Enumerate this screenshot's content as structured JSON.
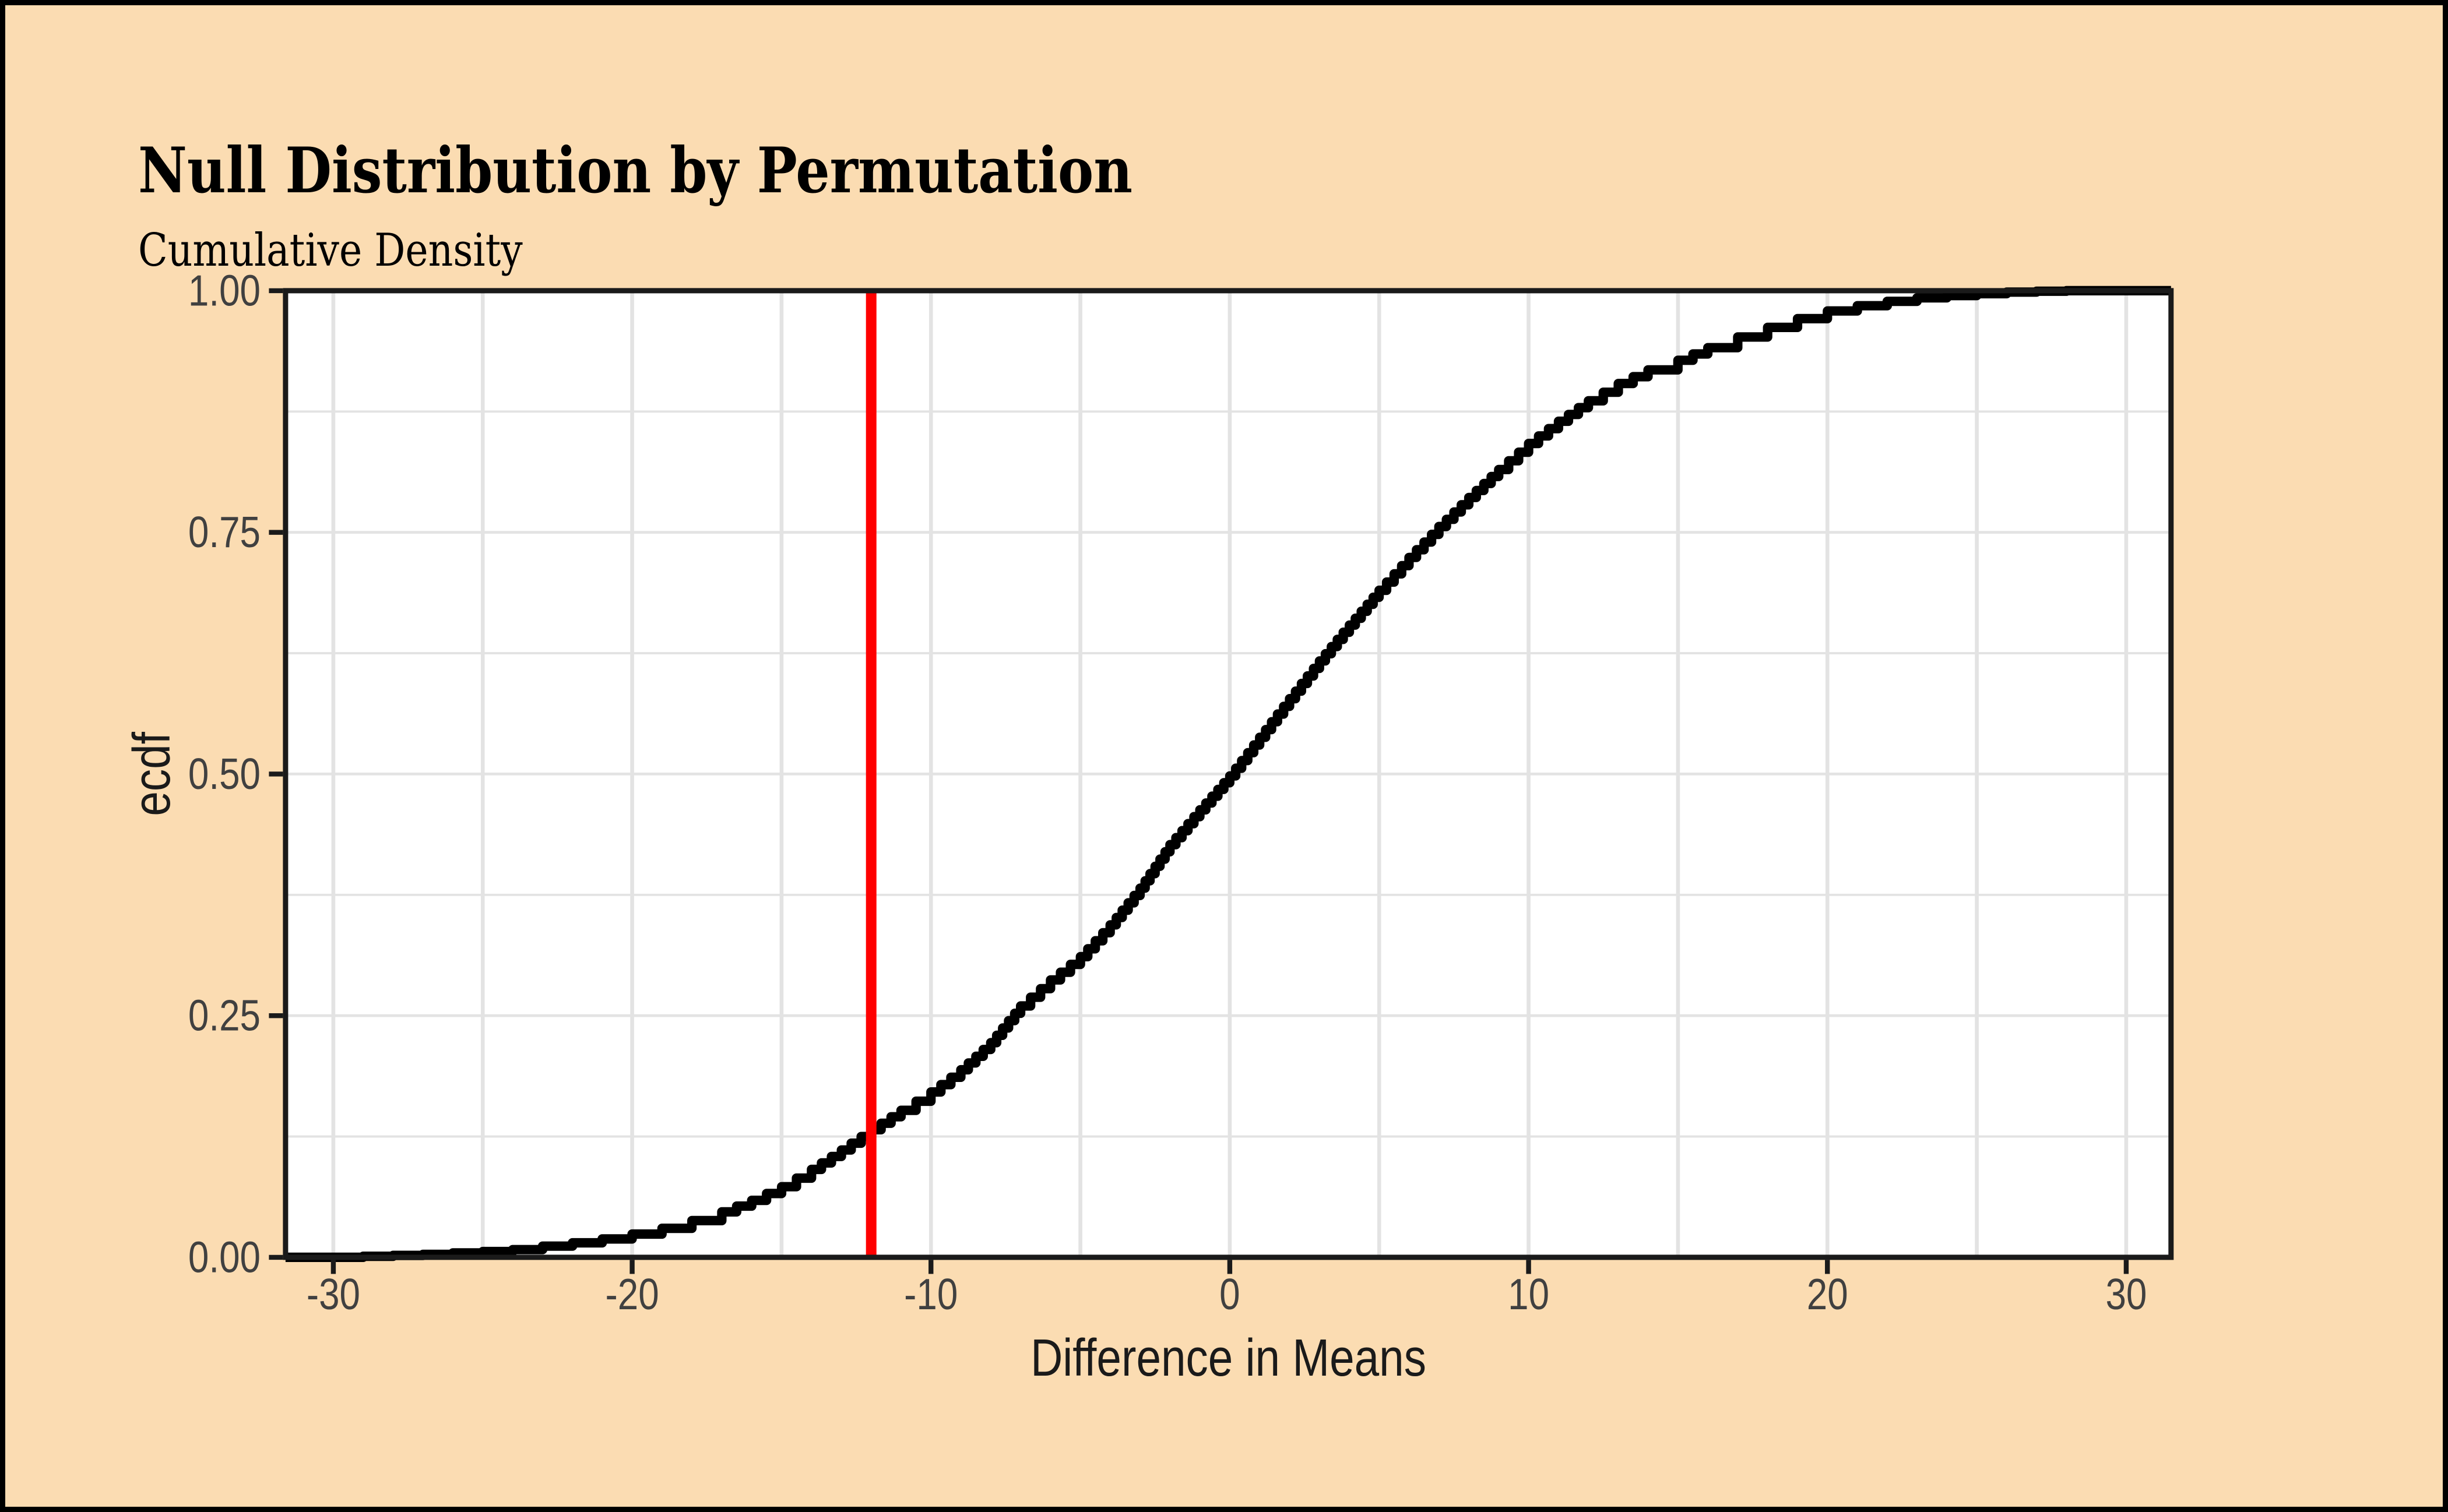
{
  "chart_data": {
    "type": "line",
    "subtype": "ecdf-step",
    "title": "Null Distribution by Permutation",
    "subtitle": "Cumulative Density",
    "xlabel": "Difference in Means",
    "ylabel": "ecdf",
    "x_domain": [
      -31.6,
      31.5
    ],
    "y_domain": [
      0,
      1
    ],
    "x_ticks": {
      "values": [
        -30,
        -20,
        -10,
        0,
        10,
        20,
        30
      ],
      "labels": [
        "-30",
        "-20",
        "-10",
        "0",
        "10",
        "20",
        "30"
      ]
    },
    "y_ticks": {
      "values": [
        0,
        0.25,
        0.5,
        0.75,
        1
      ],
      "labels": [
        "0.00",
        "0.25",
        "0.50",
        "0.75",
        "1.00"
      ]
    },
    "x_minor_ticks": [
      -25,
      -15,
      -5,
      5,
      15,
      25
    ],
    "y_minor_ticks": [
      0.125,
      0.375,
      0.625,
      0.875
    ],
    "grid": "on",
    "legend": "none",
    "reference_line": {
      "orientation": "vertical",
      "x": -12,
      "color": "#FF0000"
    },
    "series": [
      {
        "name": "ecdf",
        "color": "#000000",
        "points": [
          [
            -31.6,
            0
          ],
          [
            -29.6,
            0
          ],
          [
            -29,
            0.001
          ],
          [
            -28,
            0.002
          ],
          [
            -27,
            0.003
          ],
          [
            -26,
            0.0045
          ],
          [
            -25,
            0.006
          ],
          [
            -24,
            0.008
          ],
          [
            -23,
            0.0115
          ],
          [
            -22,
            0.015
          ],
          [
            -21,
            0.019
          ],
          [
            -20,
            0.024
          ],
          [
            -19,
            0.03
          ],
          [
            -18,
            0.038
          ],
          [
            -17,
            0.047
          ],
          [
            -16,
            0.059
          ],
          [
            -15,
            0.073
          ],
          [
            -14,
            0.091
          ],
          [
            -13,
            0.111
          ],
          [
            -12,
            0.132
          ],
          [
            -11,
            0.152
          ],
          [
            -10,
            0.171
          ],
          [
            -9,
            0.194
          ],
          [
            -8,
            0.222
          ],
          [
            -7,
            0.26
          ],
          [
            -6,
            0.287
          ],
          [
            -5,
            0.311
          ],
          [
            -4,
            0.344
          ],
          [
            -3,
            0.382
          ],
          [
            -2,
            0.427
          ],
          [
            -1,
            0.463
          ],
          [
            0,
            0.498
          ],
          [
            1,
            0.538
          ],
          [
            2,
            0.578
          ],
          [
            3,
            0.617
          ],
          [
            4,
            0.654
          ],
          [
            5,
            0.69
          ],
          [
            6,
            0.724
          ],
          [
            7,
            0.756
          ],
          [
            8,
            0.786
          ],
          [
            9,
            0.815
          ],
          [
            10,
            0.842
          ],
          [
            11,
            0.865
          ],
          [
            12,
            0.886
          ],
          [
            13,
            0.904
          ],
          [
            14,
            0.918
          ],
          [
            15,
            0.928
          ],
          [
            16,
            0.941
          ],
          [
            17,
            0.952
          ],
          [
            18,
            0.962
          ],
          [
            19,
            0.971
          ],
          [
            20,
            0.979
          ],
          [
            21,
            0.9845
          ],
          [
            22,
            0.989
          ],
          [
            23,
            0.9925
          ],
          [
            24,
            0.995
          ],
          [
            25,
            0.997
          ],
          [
            26,
            0.9985
          ],
          [
            27,
            0.9995
          ],
          [
            28,
            1
          ],
          [
            31.5,
            1
          ]
        ]
      }
    ],
    "colors": {
      "frame": "#000000",
      "plot_background": "#FBDCB2",
      "panel_background": "#FFFFFF",
      "gridline": "#E3E3E3",
      "panel_border": "#1A1A1A",
      "tick_mark": "#1A1A1A",
      "axis_text": "#404040",
      "axis_title": "#1A1A1A",
      "title_text": "#000000",
      "curve": "#000000",
      "reference_line": "#FF0000"
    }
  }
}
